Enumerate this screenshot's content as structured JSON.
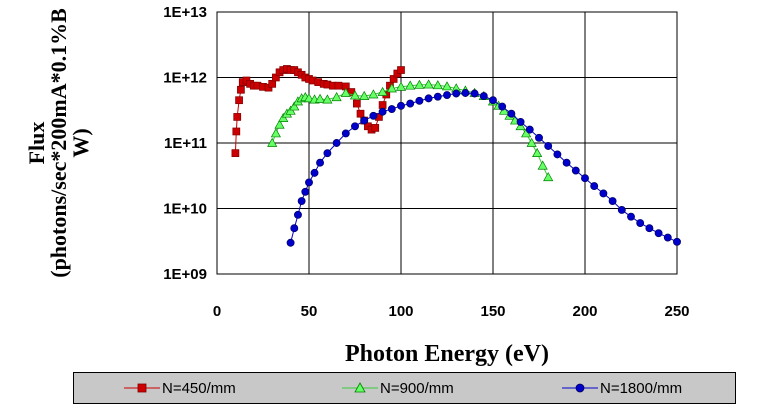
{
  "chart_data": {
    "type": "scatter",
    "x_scale": "linear",
    "y_scale": "log",
    "xlabel": "Photon Energy (eV)",
    "ylabel_line1": "Flux",
    "ylabel_line2": "(photons/sec*200mA*0.1%B",
    "ylabel_line3": "W)",
    "xlim": [
      0,
      250
    ],
    "ylim": [
      1000000000.0,
      10000000000000.0
    ],
    "x_ticks": [
      0,
      50,
      100,
      150,
      200,
      250
    ],
    "y_ticks": [
      1000000000.0,
      10000000000.0,
      100000000000.0,
      1000000000000.0,
      10000000000000.0
    ],
    "x_tick_labels": [
      "0",
      "50",
      "100",
      "150",
      "200",
      "250"
    ],
    "y_tick_labels": [
      "1E+09",
      "1E+10",
      "1E+11",
      "1E+12",
      "1E+13"
    ],
    "grid": true,
    "legend_position": "bottom",
    "series": [
      {
        "name": "N=450/mm",
        "color": "#cc0000",
        "marker": "square",
        "x": [
          10,
          10.5,
          11,
          12,
          13,
          14,
          16,
          18,
          20,
          22,
          25,
          28,
          30,
          32,
          34,
          36,
          38,
          40,
          42,
          44,
          46,
          48,
          50,
          52,
          55,
          58,
          60,
          63,
          66,
          70,
          73,
          76,
          78,
          80,
          82,
          84,
          86,
          88,
          90,
          92,
          94,
          96,
          98,
          100
        ],
        "y": [
          70000000000.0,
          150000000000.0,
          250000000000.0,
          450000000000.0,
          650000000000.0,
          850000000000.0,
          900000000000.0,
          800000000000.0,
          750000000000.0,
          750000000000.0,
          720000000000.0,
          700000000000.0,
          800000000000.0,
          1000000000000.0,
          1200000000000.0,
          1300000000000.0,
          1350000000000.0,
          1300000000000.0,
          1300000000000.0,
          1200000000000.0,
          1100000000000.0,
          1000000000000.0,
          950000000000.0,
          900000000000.0,
          850000000000.0,
          800000000000.0,
          780000000000.0,
          750000000000.0,
          750000000000.0,
          730000000000.0,
          600000000000.0,
          400000000000.0,
          280000000000.0,
          220000000000.0,
          180000000000.0,
          160000000000.0,
          170000000000.0,
          250000000000.0,
          380000000000.0,
          550000000000.0,
          750000000000.0,
          950000000000.0,
          1150000000000.0,
          1300000000000.0
        ]
      },
      {
        "name": "N=900/mm",
        "color": "#33cc33",
        "marker": "triangle",
        "x": [
          30,
          32,
          34,
          36,
          38,
          40,
          42,
          44,
          46,
          48,
          50,
          53,
          56,
          60,
          65,
          70,
          75,
          80,
          85,
          90,
          95,
          100,
          105,
          110,
          115,
          120,
          125,
          130,
          135,
          140,
          145,
          150,
          153,
          156,
          159,
          162,
          165,
          168,
          171,
          174,
          177,
          180
        ],
        "y": [
          100000000000.0,
          140000000000.0,
          190000000000.0,
          240000000000.0,
          280000000000.0,
          310000000000.0,
          360000000000.0,
          430000000000.0,
          480000000000.0,
          500000000000.0,
          480000000000.0,
          460000000000.0,
          470000000000.0,
          460000000000.0,
          500000000000.0,
          580000000000.0,
          530000000000.0,
          520000000000.0,
          550000000000.0,
          600000000000.0,
          680000000000.0,
          720000000000.0,
          750000000000.0,
          770000000000.0,
          780000000000.0,
          760000000000.0,
          730000000000.0,
          680000000000.0,
          630000000000.0,
          580000000000.0,
          520000000000.0,
          430000000000.0,
          370000000000.0,
          310000000000.0,
          260000000000.0,
          220000000000.0,
          180000000000.0,
          140000000000.0,
          100000000000.0,
          70000000000.0,
          45000000000.0,
          30000000000.0
        ]
      },
      {
        "name": "N=1800/mm",
        "color": "#0000cc",
        "marker": "circle",
        "x": [
          40,
          42,
          44,
          46,
          48,
          50,
          53,
          56,
          60,
          65,
          70,
          75,
          80,
          85,
          90,
          95,
          100,
          105,
          110,
          115,
          120,
          125,
          130,
          135,
          140,
          145,
          150,
          155,
          160,
          165,
          170,
          175,
          180,
          185,
          190,
          195,
          200,
          205,
          210,
          215,
          220,
          225,
          230,
          235,
          240,
          245,
          250
        ],
        "y": [
          3000000000.0,
          5000000000.0,
          8000000000.0,
          13000000000.0,
          18000000000.0,
          25000000000.0,
          35000000000.0,
          50000000000.0,
          70000000000.0,
          100000000000.0,
          140000000000.0,
          180000000000.0,
          220000000000.0,
          260000000000.0,
          300000000000.0,
          330000000000.0,
          370000000000.0,
          400000000000.0,
          440000000000.0,
          480000000000.0,
          510000000000.0,
          540000000000.0,
          570000000000.0,
          580000000000.0,
          570000000000.0,
          520000000000.0,
          450000000000.0,
          360000000000.0,
          280000000000.0,
          210000000000.0,
          160000000000.0,
          120000000000.0,
          90000000000.0,
          67000000000.0,
          50000000000.0,
          38000000000.0,
          29000000000.0,
          22000000000.0,
          17000000000.0,
          13000000000.0,
          9500000000.0,
          7500000000.0,
          6000000000.0,
          5000000000.0,
          4200000000.0,
          3600000000.0,
          3100000000.0
        ]
      }
    ]
  }
}
